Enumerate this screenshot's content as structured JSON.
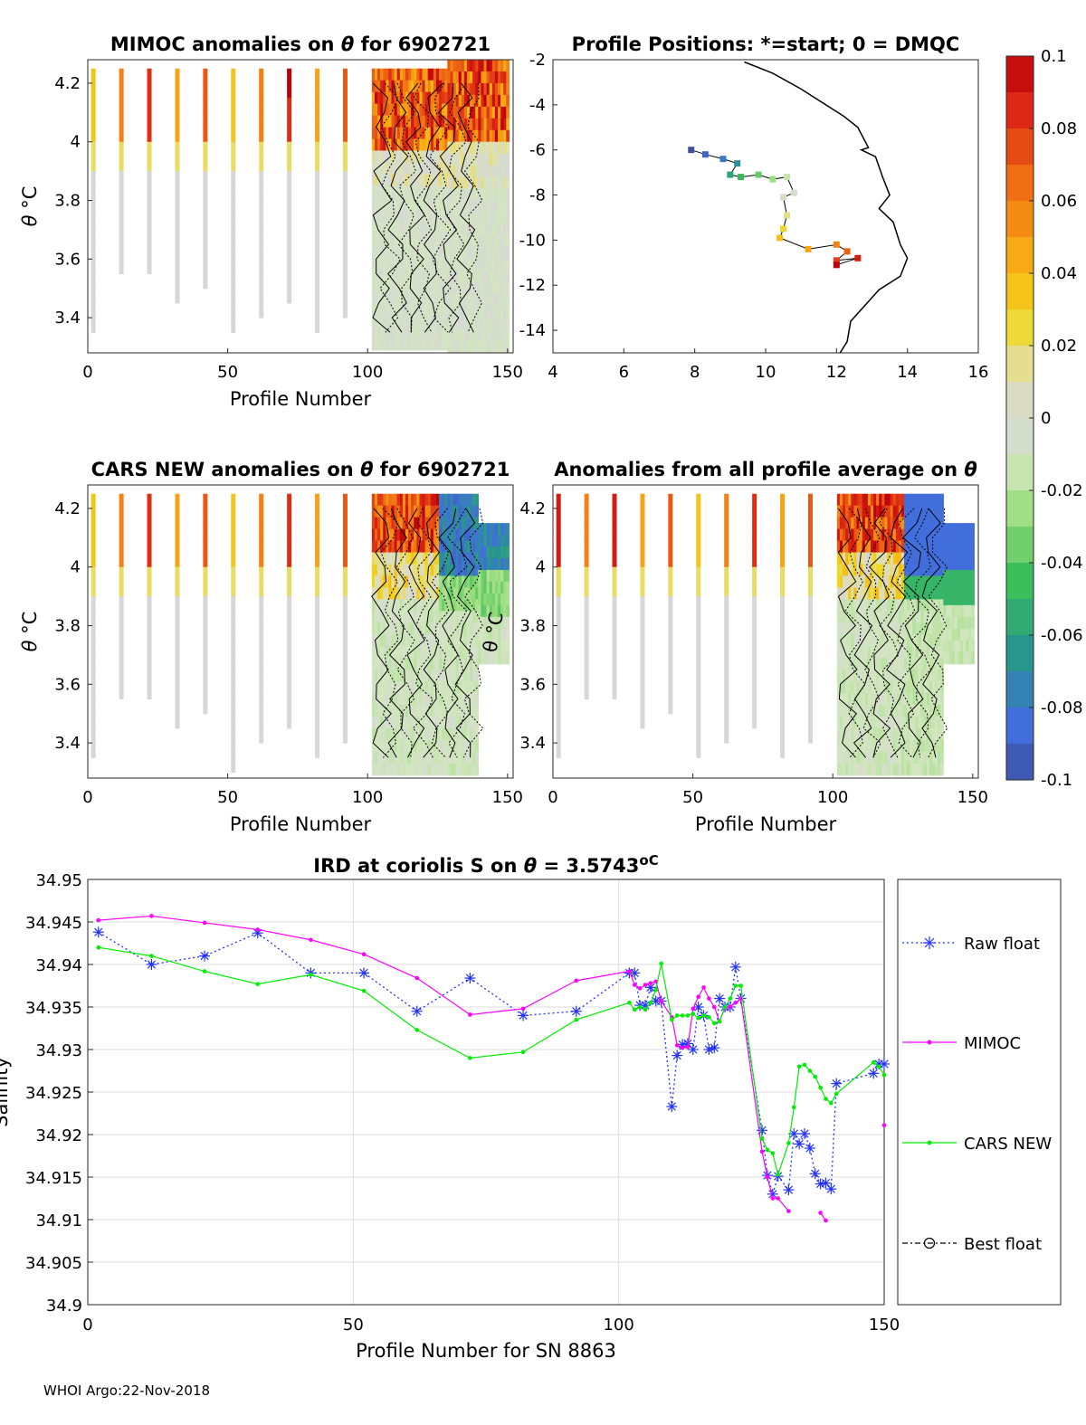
{
  "footer": "WHOI Argo:22-Nov-2018",
  "colorbar": {
    "ticks": [
      "0.1",
      "0.08",
      "0.06",
      "0.04",
      "0.02",
      "0",
      "-0.02",
      "-0.04",
      "-0.06",
      "-0.08",
      "-0.1"
    ],
    "range": [
      -0.1,
      0.1
    ]
  },
  "panels": {
    "mimoc": {
      "title_pre": "MIMOC anomalies on ",
      "title_theta": "θ",
      "title_post": "  for 6902721",
      "xlabel": "Profile Number",
      "ylabel_theta": "θ",
      "ylabel_unit": " °C",
      "xticks": [
        "0",
        "50",
        "100",
        "150"
      ],
      "yticks": [
        "4.2",
        "4",
        "3.8",
        "3.6",
        "3.4"
      ]
    },
    "map": {
      "title": "Profile Positions: *=start; 0 = DMQC",
      "xticks": [
        "4",
        "6",
        "8",
        "10",
        "12",
        "14",
        "16"
      ],
      "yticks": [
        "-2",
        "-4",
        "-6",
        "-8",
        "-10",
        "-12",
        "-14"
      ]
    },
    "cars": {
      "title_pre": "CARS NEW anomalies on ",
      "title_theta": "θ",
      "title_post": " for 6902721",
      "xlabel": "Profile Number",
      "ylabel_theta": "θ",
      "ylabel_unit": " °C",
      "xticks": [
        "0",
        "50",
        "100",
        "150"
      ],
      "yticks": [
        "4.2",
        "4",
        "3.8",
        "3.6",
        "3.4"
      ],
      "contour_label": "θ °C"
    },
    "avg": {
      "title_pre": "Anomalies from all profile average on ",
      "title_theta": "θ",
      "xlabel": "Profile Number",
      "xticks": [
        "0",
        "50",
        "100",
        "150"
      ],
      "yticks": [
        "4.2",
        "4",
        "3.8",
        "3.6",
        "3.4"
      ]
    }
  },
  "chart_data": {
    "type": "line",
    "title_pre": "IRD at coriolis S on ",
    "title_theta": "θ",
    "title_post": " = 3.5743",
    "title_unit": "oC",
    "xlabel": "Profile Number for SN 8863",
    "ylabel": "Salinity",
    "xlim": [
      0,
      150
    ],
    "ylim": [
      34.9,
      34.95
    ],
    "xticks": [
      "0",
      "50",
      "100",
      "150"
    ],
    "yticks": [
      "34.95",
      "34.945",
      "34.94",
      "34.935",
      "34.93",
      "34.925",
      "34.92",
      "34.915",
      "34.91",
      "34.905",
      "34.9"
    ],
    "grid": true,
    "legend_position": "right-outside",
    "series": [
      {
        "name": "Raw float",
        "color": "#2233ff",
        "style": "dotted",
        "marker": "star",
        "x": [
          2,
          12,
          22,
          32,
          42,
          52,
          62,
          72,
          82,
          92,
          102,
          103,
          104,
          105,
          106,
          107,
          108,
          110,
          111,
          112,
          113,
          114,
          115,
          116,
          117,
          118,
          119,
          120,
          121,
          122,
          123,
          127,
          128,
          129,
          130,
          132,
          133,
          134,
          135,
          136,
          137,
          138,
          139,
          140,
          141,
          148,
          149,
          150
        ],
        "y": [
          34.9438,
          34.94,
          34.941,
          34.9437,
          34.939,
          34.939,
          34.9345,
          34.9384,
          34.934,
          34.9345,
          34.939,
          34.939,
          34.9352,
          34.9352,
          34.9373,
          34.9357,
          34.9357,
          34.9233,
          34.9293,
          34.9306,
          34.9307,
          34.93,
          34.935,
          34.934,
          34.93,
          34.9302,
          34.936,
          34.935,
          34.935,
          34.9397,
          34.936,
          34.9205,
          34.9152,
          34.913,
          34.9151,
          34.9135,
          34.9201,
          34.9189,
          34.9201,
          34.9184,
          34.9154,
          34.9142,
          34.9143,
          34.9136,
          34.926,
          34.9272,
          34.9283,
          34.9283
        ]
      },
      {
        "name": "MIMOC",
        "color": "#ff00ff",
        "style": "solid",
        "marker": "dot",
        "x": [
          2,
          12,
          22,
          32,
          42,
          52,
          62,
          72,
          82,
          92,
          102,
          103,
          104,
          105,
          106,
          107,
          108,
          110,
          111,
          112,
          113,
          114,
          115,
          116,
          117,
          118,
          119,
          120,
          121,
          122,
          123,
          127,
          128,
          129,
          130,
          132
        ],
        "y": [
          34.9452,
          34.9457,
          34.9449,
          34.9441,
          34.9429,
          34.9412,
          34.9384,
          34.9341,
          34.9348,
          34.9381,
          34.9392,
          34.9376,
          34.9372,
          34.9376,
          34.9378,
          34.938,
          34.9357,
          34.9338,
          34.9305,
          34.9302,
          34.9303,
          34.9348,
          34.9362,
          34.9373,
          34.936,
          34.935,
          34.9333,
          34.9349,
          34.935,
          34.9355,
          34.936,
          34.918,
          34.915,
          34.9125,
          34.9125,
          34.911
        ]
      },
      {
        "name": "MIMOC_tail_a",
        "legend": false,
        "color": "#ff00ff",
        "style": "solid",
        "marker": "dot",
        "x": [
          138,
          139
        ],
        "y": [
          34.9108,
          34.9099
        ]
      },
      {
        "name": "MIMOC_tail_b",
        "legend": false,
        "color": "#ff00ff",
        "style": "solid",
        "marker": "dot",
        "x": [
          150
        ],
        "y": [
          34.9211
        ]
      },
      {
        "name": "CARS NEW",
        "color": "#00ee00",
        "style": "solid",
        "marker": "dot",
        "x": [
          2,
          12,
          22,
          32,
          42,
          52,
          62,
          72,
          82,
          92,
          102,
          103,
          104,
          105,
          106,
          107,
          108,
          110,
          111,
          112,
          113,
          114,
          115,
          116,
          117,
          118,
          119,
          120,
          121,
          122,
          123,
          127,
          128,
          129,
          130,
          132,
          133,
          134,
          135,
          136,
          137,
          138,
          139,
          140,
          141,
          148,
          149,
          150
        ],
        "y": [
          34.942,
          34.941,
          34.9392,
          34.9377,
          34.9388,
          34.9369,
          34.9323,
          34.929,
          34.9297,
          34.9335,
          34.9355,
          34.9347,
          34.935,
          34.9347,
          34.9355,
          34.937,
          34.9401,
          34.9335,
          34.934,
          34.934,
          34.934,
          34.9342,
          34.9337,
          34.934,
          34.9338,
          34.9331,
          34.9333,
          34.935,
          34.936,
          34.9375,
          34.9375,
          34.9195,
          34.9182,
          34.9178,
          34.9153,
          34.919,
          34.9232,
          34.928,
          34.9282,
          34.9275,
          34.9268,
          34.9255,
          34.9242,
          34.9237,
          34.9248,
          34.9285,
          34.928,
          34.927
        ]
      },
      {
        "name": "Best float",
        "color": "#000000",
        "style": "dashdot",
        "marker": "circle",
        "x": [],
        "y": []
      }
    ]
  }
}
